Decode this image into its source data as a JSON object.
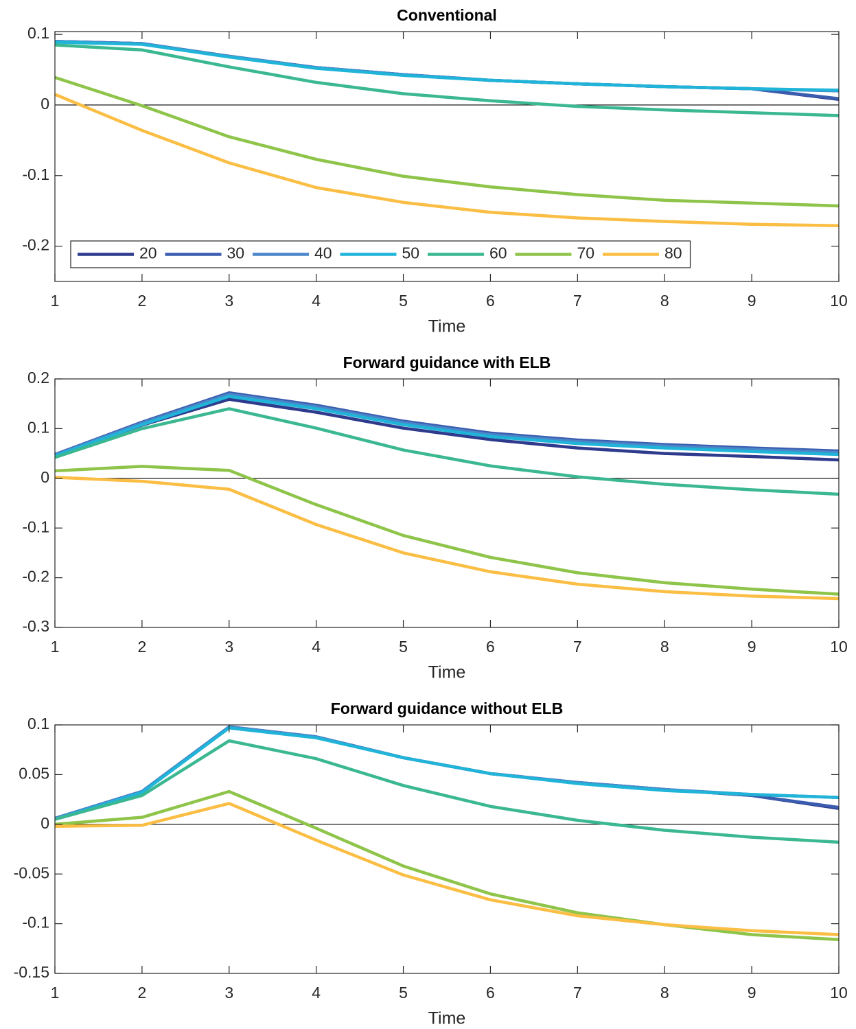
{
  "chart_data": [
    {
      "type": "line",
      "title": "Conventional",
      "xlabel": "Time",
      "x": [
        1,
        2,
        3,
        4,
        5,
        6,
        7,
        8,
        9,
        10
      ],
      "xlim": [
        1,
        10
      ],
      "xticks": [
        1,
        2,
        3,
        4,
        5,
        6,
        7,
        8,
        9,
        10
      ],
      "ylim": [
        -0.25,
        0.104
      ],
      "yticks": [
        -0.2,
        -0.1,
        0,
        0.1
      ],
      "refline": 0,
      "legend": "lower left",
      "legend_orientation": "horizontal",
      "series": [
        {
          "name": "20",
          "color": "#2e3a8c",
          "values": [
            0.09,
            0.087,
            0.069,
            0.053,
            0.043,
            0.035,
            0.03,
            0.026,
            0.023,
            0.008
          ]
        },
        {
          "name": "30",
          "color": "#3a5db0",
          "values": [
            0.09,
            0.087,
            0.069,
            0.053,
            0.043,
            0.035,
            0.03,
            0.026,
            0.023,
            0.009
          ]
        },
        {
          "name": "40",
          "color": "#4a86c8",
          "values": [
            0.09,
            0.087,
            0.069,
            0.053,
            0.043,
            0.035,
            0.03,
            0.026,
            0.023,
            0.02
          ]
        },
        {
          "name": "50",
          "color": "#1fb4d8",
          "values": [
            0.089,
            0.086,
            0.068,
            0.052,
            0.042,
            0.035,
            0.03,
            0.026,
            0.023,
            0.021
          ]
        },
        {
          "name": "60",
          "color": "#3bb891",
          "values": [
            0.085,
            0.078,
            0.054,
            0.032,
            0.016,
            0.006,
            -0.002,
            -0.007,
            -0.011,
            -0.015
          ]
        },
        {
          "name": "70",
          "color": "#8fc44a",
          "values": [
            0.039,
            -0.001,
            -0.045,
            -0.077,
            -0.101,
            -0.116,
            -0.127,
            -0.135,
            -0.139,
            -0.143
          ]
        },
        {
          "name": "80",
          "color": "#fbbe45",
          "values": [
            0.015,
            -0.036,
            -0.082,
            -0.117,
            -0.138,
            -0.152,
            -0.16,
            -0.165,
            -0.169,
            -0.171
          ]
        }
      ]
    },
    {
      "type": "line",
      "title": "Forward guidance with ELB",
      "xlabel": "Time",
      "x": [
        1,
        2,
        3,
        4,
        5,
        6,
        7,
        8,
        9,
        10
      ],
      "xlim": [
        1,
        10
      ],
      "xticks": [
        1,
        2,
        3,
        4,
        5,
        6,
        7,
        8,
        9,
        10
      ],
      "ylim": [
        -0.3,
        0.2
      ],
      "yticks": [
        -0.3,
        -0.2,
        -0.1,
        0,
        0.1,
        0.2
      ],
      "refline": 0,
      "series": [
        {
          "color": "#2e3a8c",
          "values": [
            0.047,
            0.107,
            0.159,
            0.133,
            0.101,
            0.078,
            0.061,
            0.05,
            0.044,
            0.037
          ]
        },
        {
          "color": "#3a5db0",
          "values": [
            0.048,
            0.113,
            0.172,
            0.147,
            0.115,
            0.091,
            0.077,
            0.068,
            0.061,
            0.055
          ]
        },
        {
          "color": "#4a86c8",
          "values": [
            0.047,
            0.111,
            0.169,
            0.144,
            0.112,
            0.088,
            0.074,
            0.065,
            0.058,
            0.052
          ]
        },
        {
          "color": "#1fb4d8",
          "values": [
            0.045,
            0.108,
            0.165,
            0.14,
            0.108,
            0.084,
            0.07,
            0.061,
            0.054,
            0.048
          ]
        },
        {
          "color": "#3bb891",
          "values": [
            0.042,
            0.1,
            0.14,
            0.101,
            0.057,
            0.025,
            0.003,
            -0.012,
            -0.023,
            -0.032
          ]
        },
        {
          "color": "#8fc44a",
          "values": [
            0.015,
            0.024,
            0.016,
            -0.053,
            -0.115,
            -0.159,
            -0.19,
            -0.21,
            -0.223,
            -0.233
          ]
        },
        {
          "color": "#fbbe45",
          "values": [
            0.002,
            -0.006,
            -0.022,
            -0.093,
            -0.15,
            -0.188,
            -0.213,
            -0.228,
            -0.237,
            -0.242
          ]
        }
      ]
    },
    {
      "type": "line",
      "title": "Forward guidance without ELB",
      "xlabel": "Time",
      "x": [
        1,
        2,
        3,
        4,
        5,
        6,
        7,
        8,
        9,
        10
      ],
      "xlim": [
        1,
        10
      ],
      "xticks": [
        1,
        2,
        3,
        4,
        5,
        6,
        7,
        8,
        9,
        10
      ],
      "ylim": [
        -0.15,
        0.1
      ],
      "yticks": [
        -0.15,
        -0.1,
        -0.05,
        0,
        0.05,
        0.1
      ],
      "refline": 0,
      "series": [
        {
          "color": "#2e3a8c",
          "values": [
            0.006,
            0.033,
            0.098,
            0.088,
            0.067,
            0.051,
            0.042,
            0.035,
            0.029,
            0.016
          ]
        },
        {
          "color": "#3a5db0",
          "values": [
            0.006,
            0.033,
            0.098,
            0.088,
            0.067,
            0.051,
            0.042,
            0.035,
            0.029,
            0.017
          ]
        },
        {
          "color": "#4a86c8",
          "values": [
            0.006,
            0.033,
            0.098,
            0.088,
            0.067,
            0.051,
            0.042,
            0.035,
            0.03,
            0.027
          ]
        },
        {
          "color": "#1fb4d8",
          "values": [
            0.005,
            0.032,
            0.097,
            0.087,
            0.067,
            0.051,
            0.041,
            0.034,
            0.03,
            0.027
          ]
        },
        {
          "color": "#3bb891",
          "values": [
            0.005,
            0.029,
            0.084,
            0.066,
            0.039,
            0.018,
            0.004,
            -0.006,
            -0.013,
            -0.018
          ]
        },
        {
          "color": "#8fc44a",
          "values": [
            0.0,
            0.007,
            0.033,
            -0.004,
            -0.042,
            -0.07,
            -0.089,
            -0.101,
            -0.111,
            -0.116
          ]
        },
        {
          "color": "#fbbe45",
          "values": [
            -0.002,
            -0.001,
            0.021,
            -0.016,
            -0.051,
            -0.076,
            -0.092,
            -0.101,
            -0.107,
            -0.111
          ]
        }
      ]
    }
  ]
}
